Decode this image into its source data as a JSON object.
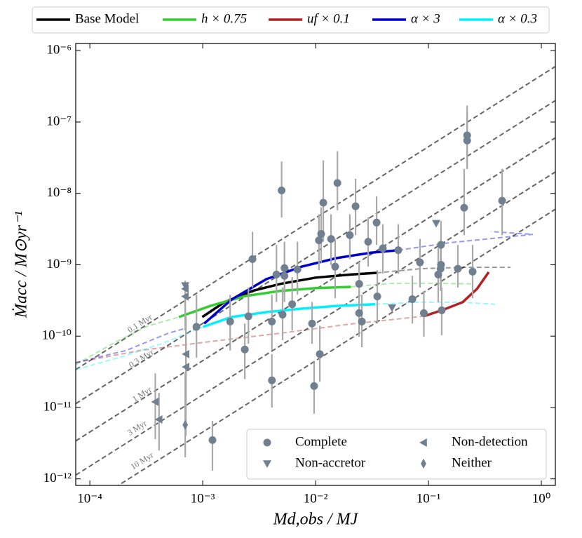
{
  "chart_data": {
    "type": "scatter",
    "xscale": "log",
    "yscale": "log",
    "xlabel": "Md,obs / MJ",
    "ylabel": "Ṁacc / M⊙yr⁻¹",
    "xlim": [
      7.5e-05,
      1.33
    ],
    "ylim": [
      8.1e-13,
      1.26e-06
    ],
    "xticks": [
      {
        "value": 0.0001,
        "label": "10⁻⁴"
      },
      {
        "value": 0.001,
        "label": "10⁻³"
      },
      {
        "value": 0.01,
        "label": "10⁻²"
      },
      {
        "value": 0.1,
        "label": "10⁻¹"
      },
      {
        "value": 1,
        "label": "10⁰"
      }
    ],
    "yticks": [
      {
        "value": 1e-12,
        "label": "10⁻¹²"
      },
      {
        "value": 1e-11,
        "label": "10⁻¹¹"
      },
      {
        "value": 1e-10,
        "label": "10⁻¹⁰"
      },
      {
        "value": 1e-09,
        "label": "10⁻⁹"
      },
      {
        "value": 1e-08,
        "label": "10⁻⁸"
      },
      {
        "value": 1e-07,
        "label": "10⁻⁷"
      },
      {
        "value": 1e-06,
        "label": "10⁻⁶"
      }
    ],
    "models_legend": "top",
    "legend": "lower right",
    "isochrones": [
      {
        "label": "0.1 Myr",
        "color": "#666666",
        "x": [
          7.5e-05,
          1.33
        ],
        "values": [
          3.4e-11,
          6e-07
        ]
      },
      {
        "label": "0.3 Myr",
        "color": "#666666",
        "x": [
          7.5e-05,
          1.33
        ],
        "values": [
          1.13e-11,
          2e-07
        ]
      },
      {
        "label": "1 Myr",
        "color": "#666666",
        "x": [
          7.5e-05,
          1.33
        ],
        "values": [
          3.4e-12,
          6e-08
        ]
      },
      {
        "label": "3 Myr",
        "color": "#666666",
        "x": [
          7.5e-05,
          1.33
        ],
        "values": [
          1.13e-12,
          2e-08
        ]
      },
      {
        "label": "10 Myr",
        "color": "#666666",
        "x": [
          7.5e-05,
          1.33
        ],
        "values": [
          3.4e-13,
          6e-09
        ]
      }
    ],
    "models": [
      {
        "name": "Base Model",
        "color": "#000000",
        "x": [
          0.00099,
          0.00156,
          0.00276,
          0.00489,
          0.01,
          0.0205,
          0.0347
        ],
        "values": [
          1.85e-10,
          3e-10,
          4.3e-10,
          5.4e-10,
          6.6e-10,
          7.3e-10,
          7.7e-10
        ],
        "dashed_x": [
          0.0347,
          0.085,
          0.201,
          0.533
        ],
        "dashed_values": [
          7.7e-10,
          8.8e-10,
          9.2e-10,
          9.2e-10
        ]
      },
      {
        "name": "h × 0.75",
        "color": "#33cc33",
        "x": [
          0.000615,
          0.00117,
          0.00239,
          0.00489,
          0.01,
          0.0205
        ],
        "values": [
          1.85e-10,
          2.65e-10,
          3.65e-10,
          4.3e-10,
          4.7e-10,
          4.9e-10
        ],
        "dashed_x": [
          7.5e-05,
          0.000158,
          0.000323,
          0.000615,
          null,
          0.0205,
          0.0482,
          0.114,
          0.239
        ],
        "dashed_values": [
          4e-11,
          7.8e-11,
          1.38e-10,
          1.85e-10,
          null,
          4.9e-10,
          5.5e-10,
          5.5e-10,
          5.4e-10
        ]
      },
      {
        "name": "uf × 0.1",
        "color": "#b22222",
        "x": [
          0.091,
          0.131,
          0.201,
          0.269,
          0.342
        ],
        "values": [
          1.9e-10,
          2.3e-10,
          3e-10,
          4.6e-10,
          7.9e-10
        ],
        "dashed_x": [
          7.5e-05,
          0.00028,
          0.00117,
          0.00489,
          0.0205,
          0.091
        ],
        "dashed_values": [
          4.25e-11,
          6.3e-11,
          8.4e-11,
          1.1e-10,
          1.48e-10,
          1.9e-10
        ]
      },
      {
        "name": "α × 3",
        "color": "#0000cd",
        "x": [
          0.00103,
          0.0018,
          0.00367,
          0.0075,
          0.0154,
          0.0314,
          0.054
        ],
        "values": [
          1.5e-10,
          3.26e-10,
          6.3e-10,
          9.4e-10,
          1.24e-09,
          1.48e-09,
          1.6e-09
        ],
        "dashed_x": [
          7.5e-05,
          0.00021,
          0.000497,
          0.00071,
          null,
          0.054,
          0.151,
          0.357,
          0.842,
          0.357
        ],
        "dashed_values": [
          4.25e-11,
          6.3e-11,
          1.1e-10,
          1.29e-10,
          null,
          1.6e-09,
          2.03e-09,
          2.33e-09,
          2.67e-09,
          2.92e-09
        ]
      },
      {
        "name": "α × 0.3",
        "color": "#00f0ff",
        "x": [
          0.00101,
          0.0018,
          0.00367,
          0.0075,
          0.0154,
          0.0337
        ],
        "values": [
          1.35e-10,
          1.85e-10,
          2.17e-10,
          2.43e-10,
          2.65e-10,
          2.8e-10
        ],
        "dashed_x": [
          7.5e-05,
          0.000182,
          0.00043,
          0.00101,
          null,
          0.0337,
          0.085,
          0.201,
          0.389
        ],
        "dashed_values": [
          3.4e-11,
          5e-11,
          7.8e-11,
          1.35e-10,
          null,
          2.8e-10,
          3e-10,
          2.97e-10,
          2.8e-10
        ]
      }
    ],
    "series": [
      {
        "name": "Complete",
        "marker": "circle",
        "color": "#708090",
        "x": [
          0.005,
          0.0117,
          0.0156,
          0.0112,
          0.0107,
          0.0137,
          0.0226,
          0.0201,
          0.0347,
          0.0292,
          0.0394,
          0.0149,
          0.0045,
          0.0053,
          0.0053,
          0.0069,
          0.00276,
          0.0062,
          0.0041,
          0.00254,
          0.00175,
          0.00088,
          0.00236,
          0.0041,
          0.0109,
          0.0097,
          0.00122,
          0.0093,
          0.0051,
          0.0243,
          0.0243,
          0.0257,
          0.0352,
          0.054,
          0.072,
          0.084,
          0.091,
          0.122,
          0.129,
          0.129,
          0.128,
          0.131,
          0.182,
          0.207,
          0.246,
          0.22,
          0.22,
          0.449
        ],
        "values": [
          1.1e-08,
          7.4e-09,
          1.4e-08,
          2.7e-09,
          2.2e-09,
          2.3e-09,
          6.6e-09,
          2.6e-09,
          3.9e-09,
          2.1e-09,
          1.7e-09,
          9.4e-10,
          7.3e-10,
          9e-10,
          7e-10,
          8.6e-10,
          1.2e-09,
          2.8e-10,
          1.6e-10,
          1.9e-10,
          1.6e-10,
          1.35e-10,
          6.5e-11,
          2.4e-11,
          5.6e-11,
          2e-11,
          3.5e-12,
          1.5e-10,
          2e-10,
          5.4e-10,
          2.1e-10,
          1.6e-10,
          3.6e-10,
          1.6e-09,
          3.3e-10,
          1.08e-09,
          2.1e-10,
          7.3e-10,
          1e-09,
          1.9e-09,
          8.8e-10,
          2.3e-10,
          8.8e-10,
          6.3e-09,
          8e-10,
          6.5e-08,
          5.5e-08,
          7.9e-09
        ],
        "ylow": [
          4.6e-09,
          2.1e-09,
          5.8e-09,
          1.06e-09,
          8.4e-10,
          9.9e-10,
          2.6e-09,
          1.2e-09,
          1.9e-09,
          9.4e-10,
          7.5e-10,
          3.4e-10,
          3e-10,
          3.8e-10,
          3e-10,
          3.8e-10,
          4.8e-10,
          1.2e-10,
          6.3e-11,
          7.8e-11,
          6.3e-11,
          5e-11,
          2.5e-11,
          1e-11,
          2.3e-11,
          8.2e-12,
          1.3e-12,
          7.8e-11,
          8.8e-11,
          2.4e-10,
          9.8e-11,
          7e-11,
          1.5e-10,
          7.5e-10,
          1.5e-10,
          4.8e-10,
          9.8e-11,
          3e-10,
          4.3e-10,
          8.4e-10,
          4.3e-10,
          1.03e-10,
          4.8e-10,
          2.6e-09,
          3.4e-10,
          2.2e-08,
          2.2e-08,
          2.6e-09
        ],
        "yhigh": [
          2.8e-08,
          2.9e-08,
          3.9e-08,
          6.4e-09,
          5.1e-09,
          5.1e-09,
          1.6e-08,
          5.1e-09,
          9.1e-09,
          4.6e-09,
          3.7e-09,
          2.3e-09,
          1.9e-09,
          2.1e-09,
          1.7e-09,
          2.1e-09,
          2.9e-09,
          6.7e-10,
          3.8e-10,
          4.8e-10,
          3.8e-10,
          3.8e-10,
          1.5e-10,
          5.6e-11,
          1.4e-10,
          4.4e-11,
          6.5e-12,
          3e-10,
          4.8e-10,
          1.1e-09,
          4.3e-10,
          3.8e-10,
          8.4e-10,
          3.7e-09,
          7e-10,
          2.3e-09,
          4.3e-10,
          1.7e-09,
          2.3e-09,
          4.1e-09,
          1.9e-09,
          4.8e-10,
          1.9e-09,
          2.2e-08,
          1.9e-09,
          1.7e-07,
          1.4e-07,
          2.2e-08
        ]
      },
      {
        "name": "Non-accretor",
        "marker": "triangle-down",
        "color": "#708090",
        "x": [
          0.0007,
          0.117,
          0.0475
        ],
        "values": [
          5.1e-10,
          3.8e-09,
          2.5e-10
        ]
      },
      {
        "name": "Non-detection",
        "marker": "triangle-left",
        "color": "#708090",
        "x": [
          0.0007,
          0.0007,
          0.00071,
          0.00071,
          0.00038,
          0.00041
        ],
        "values": [
          4.6e-10,
          3.6e-10,
          5.6e-11,
          3.7e-11,
          1.2e-11,
          6.8e-12
        ],
        "ylow": [
          1.6e-10,
          1.2e-10,
          1.3e-11,
          4e-12,
          3.6e-12,
          2.5e-12
        ],
        "yhigh": [
          6e-10,
          5.6e-10,
          1.9e-10,
          1e-10,
          3e-11,
          1.6e-11
        ]
      },
      {
        "name": "Neither",
        "marker": "diamond",
        "color": "#708090",
        "x": [
          0.0007
        ],
        "values": [
          5.7e-12
        ],
        "ylow": [
          2e-12
        ],
        "yhigh": [
          3e-11
        ]
      }
    ]
  }
}
